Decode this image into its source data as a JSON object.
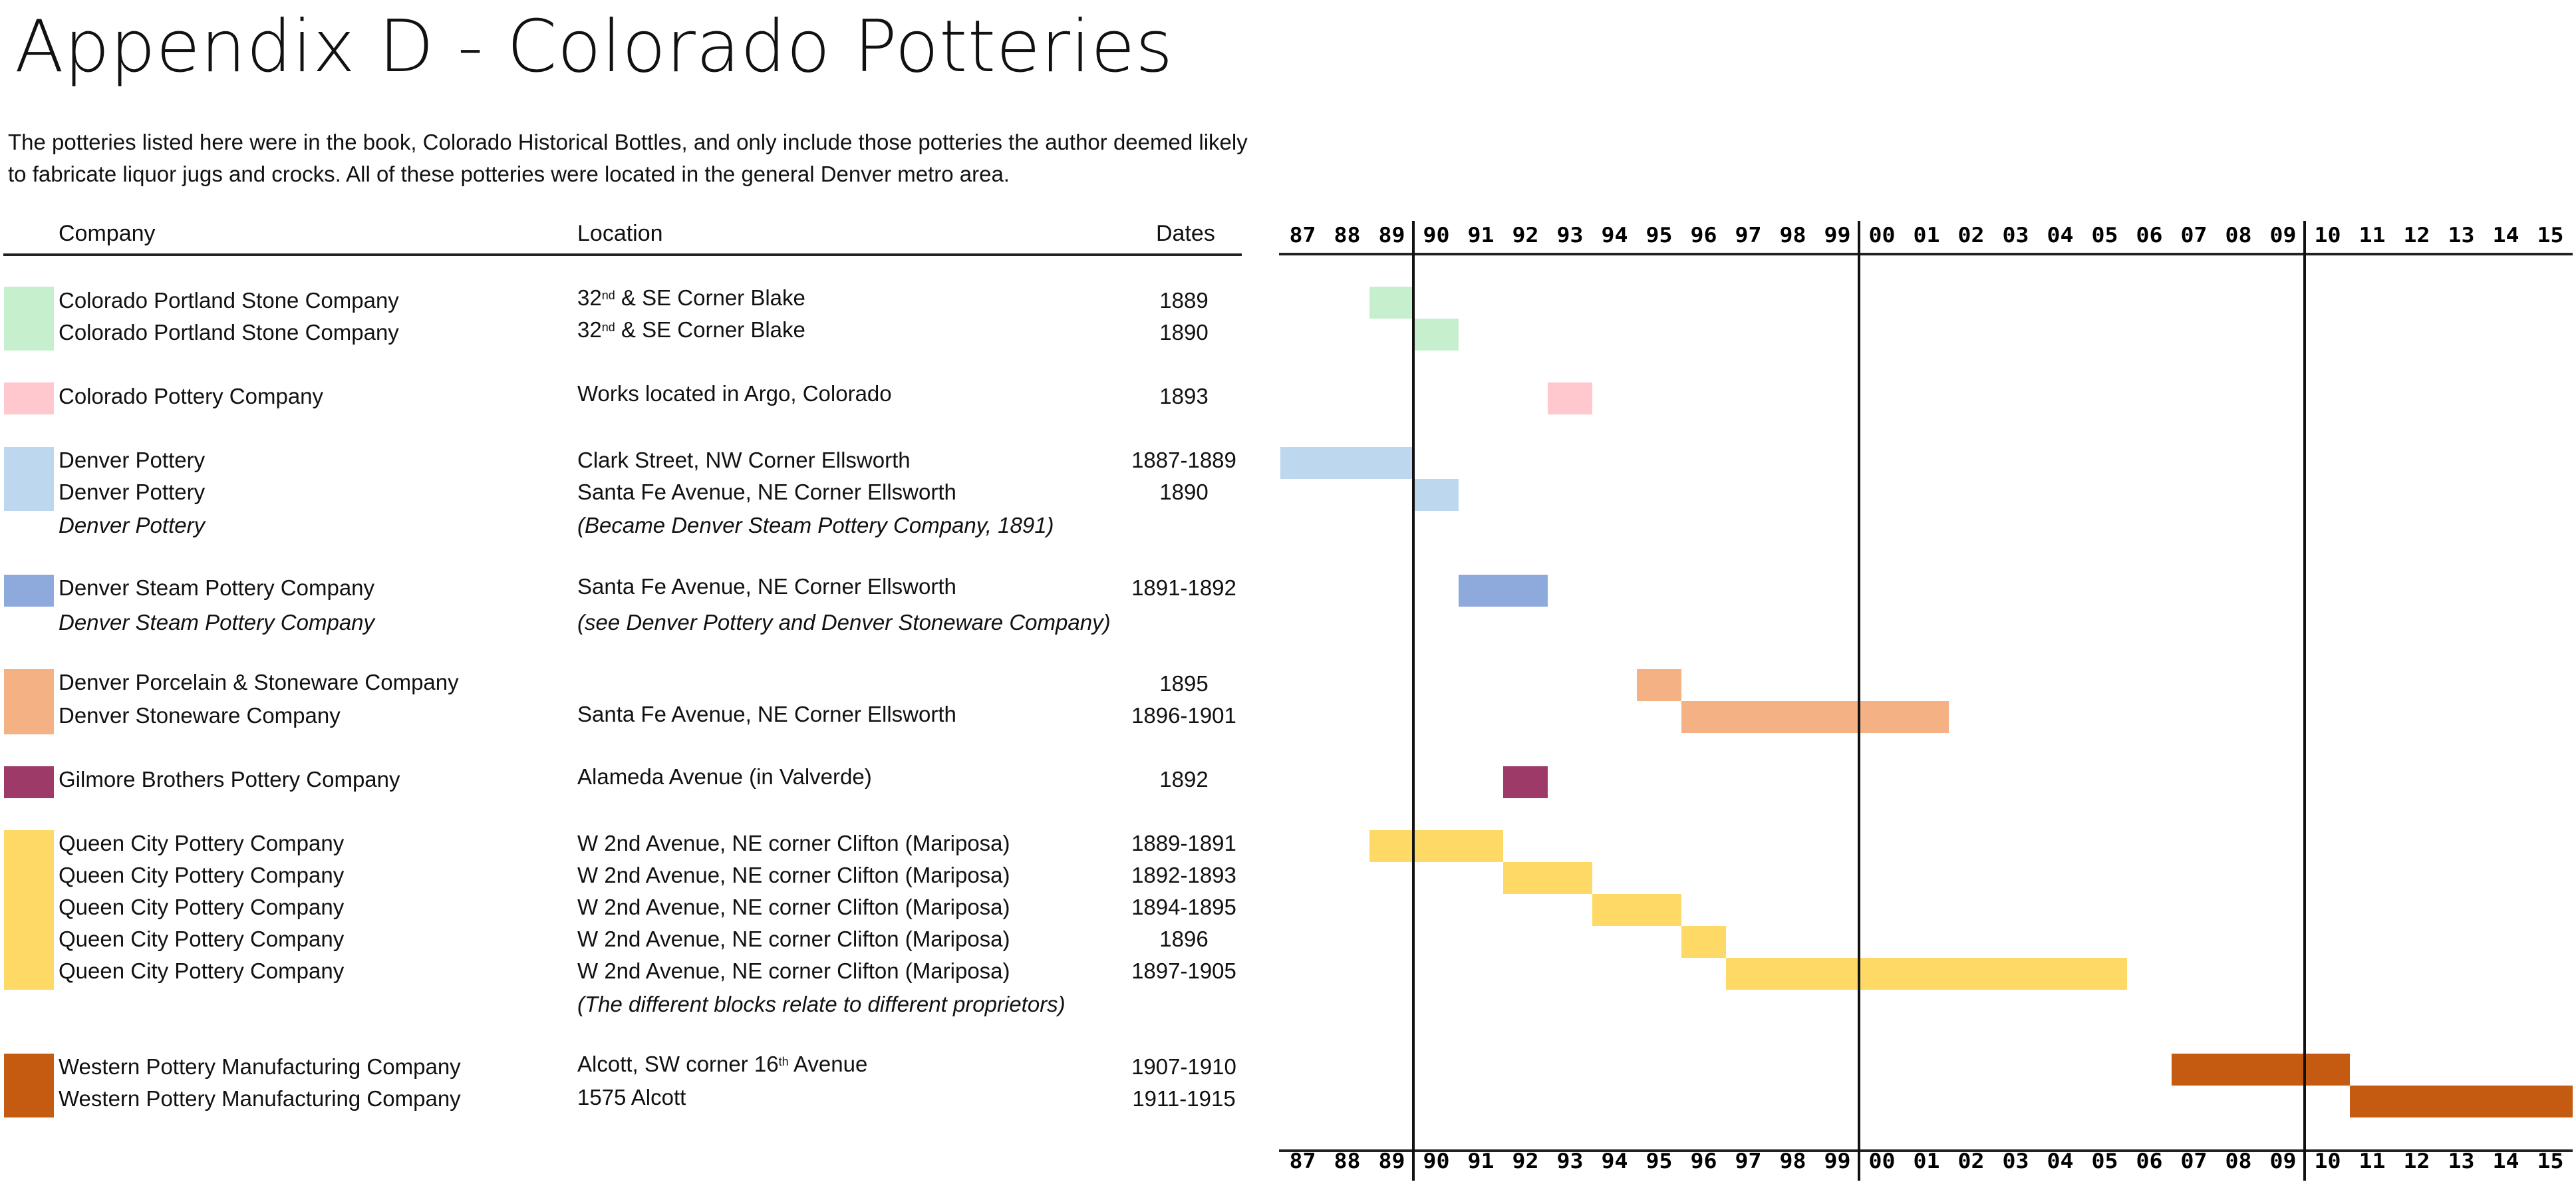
{
  "document": {
    "title": "Appendix D - Colorado Potteries",
    "intro_line1": "The potteries listed here were in the book, Colorado Historical Bottles, and only include those potteries the author deemed likely",
    "intro_line2": "to fabricate liquor jugs and crocks. All of these potteries were located in the general Denver metro area."
  },
  "table": {
    "headers": {
      "company": "Company",
      "location": "Location",
      "dates": "Dates"
    }
  },
  "colors": {
    "green": "#c6efce",
    "pink": "#ffc7ce",
    "lightblue": "#bdd7ee",
    "blue": "#8ea9db",
    "orange": "#f4b183",
    "maroon": "#9e3a68",
    "yellow": "#ffd966",
    "rust": "#c55a11"
  },
  "timeline": {
    "year_labels": [
      "87",
      "88",
      "89",
      "90",
      "91",
      "92",
      "93",
      "94",
      "95",
      "96",
      "97",
      "98",
      "99",
      "00",
      "01",
      "02",
      "03",
      "04",
      "05",
      "06",
      "07",
      "08",
      "09",
      "10",
      "11",
      "12",
      "13",
      "14",
      "15"
    ],
    "first_year": 1887,
    "last_year": 1915,
    "divider_years": [
      1890,
      1900,
      1910
    ]
  },
  "rows": [
    {
      "company": "Colorado Portland Stone Company",
      "loc_pre": "32",
      "loc_sup": "nd",
      "loc_post": " & SE Corner Blake",
      "dates": "1889",
      "start": 1889,
      "end": 1889,
      "color": "#c6efce"
    },
    {
      "company": "Colorado Portland Stone Company",
      "loc_pre": "32",
      "loc_sup": "nd",
      "loc_post": " & SE Corner Blake",
      "dates": "1890",
      "start": 1890,
      "end": 1890,
      "color": "#c6efce"
    },
    {
      "company": "Colorado Pottery Company",
      "loc_pre": "Works located in Argo, Colorado",
      "dates": "1893",
      "start": 1893,
      "end": 1893,
      "color": "#ffc7ce"
    },
    {
      "company": "Denver Pottery",
      "loc_pre": "Clark Street, NW Corner Ellsworth",
      "dates": "1887-1889",
      "start": 1887,
      "end": 1889,
      "color": "#bdd7ee"
    },
    {
      "company": "Denver Pottery",
      "loc_pre": "Santa Fe Avenue, NE Corner Ellsworth",
      "dates": "1890",
      "start": 1890,
      "end": 1890,
      "color": "#bdd7ee"
    },
    {
      "company": "Denver Pottery",
      "loc_pre": "(Became Denver Steam Pottery Company, 1891)",
      "italic": true
    },
    {
      "company": "Denver Steam Pottery Company",
      "loc_pre": "Santa Fe Avenue, NE Corner Ellsworth",
      "dates": "1891-1892",
      "start": 1891,
      "end": 1892,
      "color": "#8ea9db"
    },
    {
      "company": "Denver Steam Pottery Company",
      "loc_pre": "(see Denver Pottery and Denver Stoneware Company)",
      "italic": true
    },
    {
      "company": "Denver Porcelain & Stoneware Company",
      "loc_pre": "",
      "dates": "1895",
      "start": 1895,
      "end": 1895,
      "color": "#f4b183"
    },
    {
      "company": "Denver Stoneware Company",
      "loc_pre": "Santa Fe Avenue, NE Corner Ellsworth",
      "dates": "1896-1901",
      "start": 1896,
      "end": 1901,
      "color": "#f4b183"
    },
    {
      "company": "Gilmore Brothers Pottery Company",
      "loc_pre": "Alameda Avenue (in Valverde)",
      "dates": "1892",
      "start": 1892,
      "end": 1892,
      "color": "#9e3a68"
    },
    {
      "company": "Queen City Pottery Company",
      "loc_pre": "W 2nd Avenue, NE corner Clifton (Mariposa)",
      "dates": "1889-1891",
      "start": 1889,
      "end": 1891,
      "color": "#ffd966"
    },
    {
      "company": "Queen City Pottery Company",
      "loc_pre": "W 2nd Avenue, NE corner Clifton (Mariposa)",
      "dates": "1892-1893",
      "start": 1892,
      "end": 1893,
      "color": "#ffd966"
    },
    {
      "company": "Queen City Pottery Company",
      "loc_pre": "W 2nd Avenue, NE corner Clifton (Mariposa)",
      "dates": "1894-1895",
      "start": 1894,
      "end": 1895,
      "color": "#ffd966"
    },
    {
      "company": "Queen City Pottery Company",
      "loc_pre": "W 2nd Avenue, NE corner Clifton (Mariposa)",
      "dates": "1896",
      "start": 1896,
      "end": 1896,
      "color": "#ffd966"
    },
    {
      "company": "Queen City Pottery Company",
      "loc_pre": "W 2nd Avenue, NE corner Clifton (Mariposa)",
      "dates": "1897-1905",
      "start": 1897,
      "end": 1905,
      "color": "#ffd966"
    },
    {
      "company": "",
      "loc_pre": "(The different blocks relate to different proprietors)",
      "italic": true
    },
    {
      "company": "Western Pottery Manufacturing Company",
      "loc_pre": "Alcott, SW corner 16",
      "loc_sup": "th",
      "loc_post": " Avenue",
      "dates": "1907-1910",
      "start": 1907,
      "end": 1910,
      "color": "#c55a11"
    },
    {
      "company": "Western Pottery Manufacturing Company",
      "loc_pre": "1575 Alcott",
      "dates": "1911-1915",
      "start": 1911,
      "end": 1915,
      "color": "#c55a11"
    }
  ]
}
